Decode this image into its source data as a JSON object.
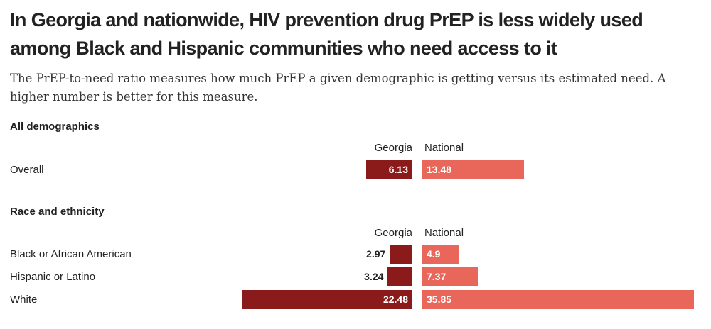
{
  "title": "In Georgia and nationwide, HIV prevention drug PrEP is less widely used among Black and Hispanic communities who need access to it",
  "subtitle": "The PrEP-to-need ratio measures how much PrEP a given demographic is getting versus its estimated need. A higher number is better for this measure.",
  "colors": {
    "georgia": "#8b1a1a",
    "national": "#e8675a"
  },
  "chart_data": {
    "type": "bar",
    "title": "In Georgia and nationwide, HIV prevention drug PrEP is less widely used among Black and Hispanic communities who need access to it",
    "series": [
      {
        "name": "Georgia"
      },
      {
        "name": "National"
      }
    ],
    "groups": [
      {
        "label": "All demographics",
        "column_headers": [
          "Georgia",
          "National"
        ],
        "rows": [
          {
            "label": "Overall",
            "georgia": 6.13,
            "national": 13.48,
            "georgia_text": "6.13",
            "national_text": "13.48"
          }
        ]
      },
      {
        "label": "Race and ethnicity",
        "column_headers": [
          "Georgia",
          "National"
        ],
        "rows": [
          {
            "label": "Black or African American",
            "georgia": 2.97,
            "national": 4.9,
            "georgia_text": "2.97",
            "national_text": "4.9"
          },
          {
            "label": "Hispanic or Latino",
            "georgia": 3.24,
            "national": 7.37,
            "georgia_text": "3.24",
            "national_text": "7.37"
          },
          {
            "label": "White",
            "georgia": 22.48,
            "national": 35.85,
            "georgia_text": "22.48",
            "national_text": "35.85"
          }
        ]
      }
    ],
    "scale_max": 35.85
  }
}
